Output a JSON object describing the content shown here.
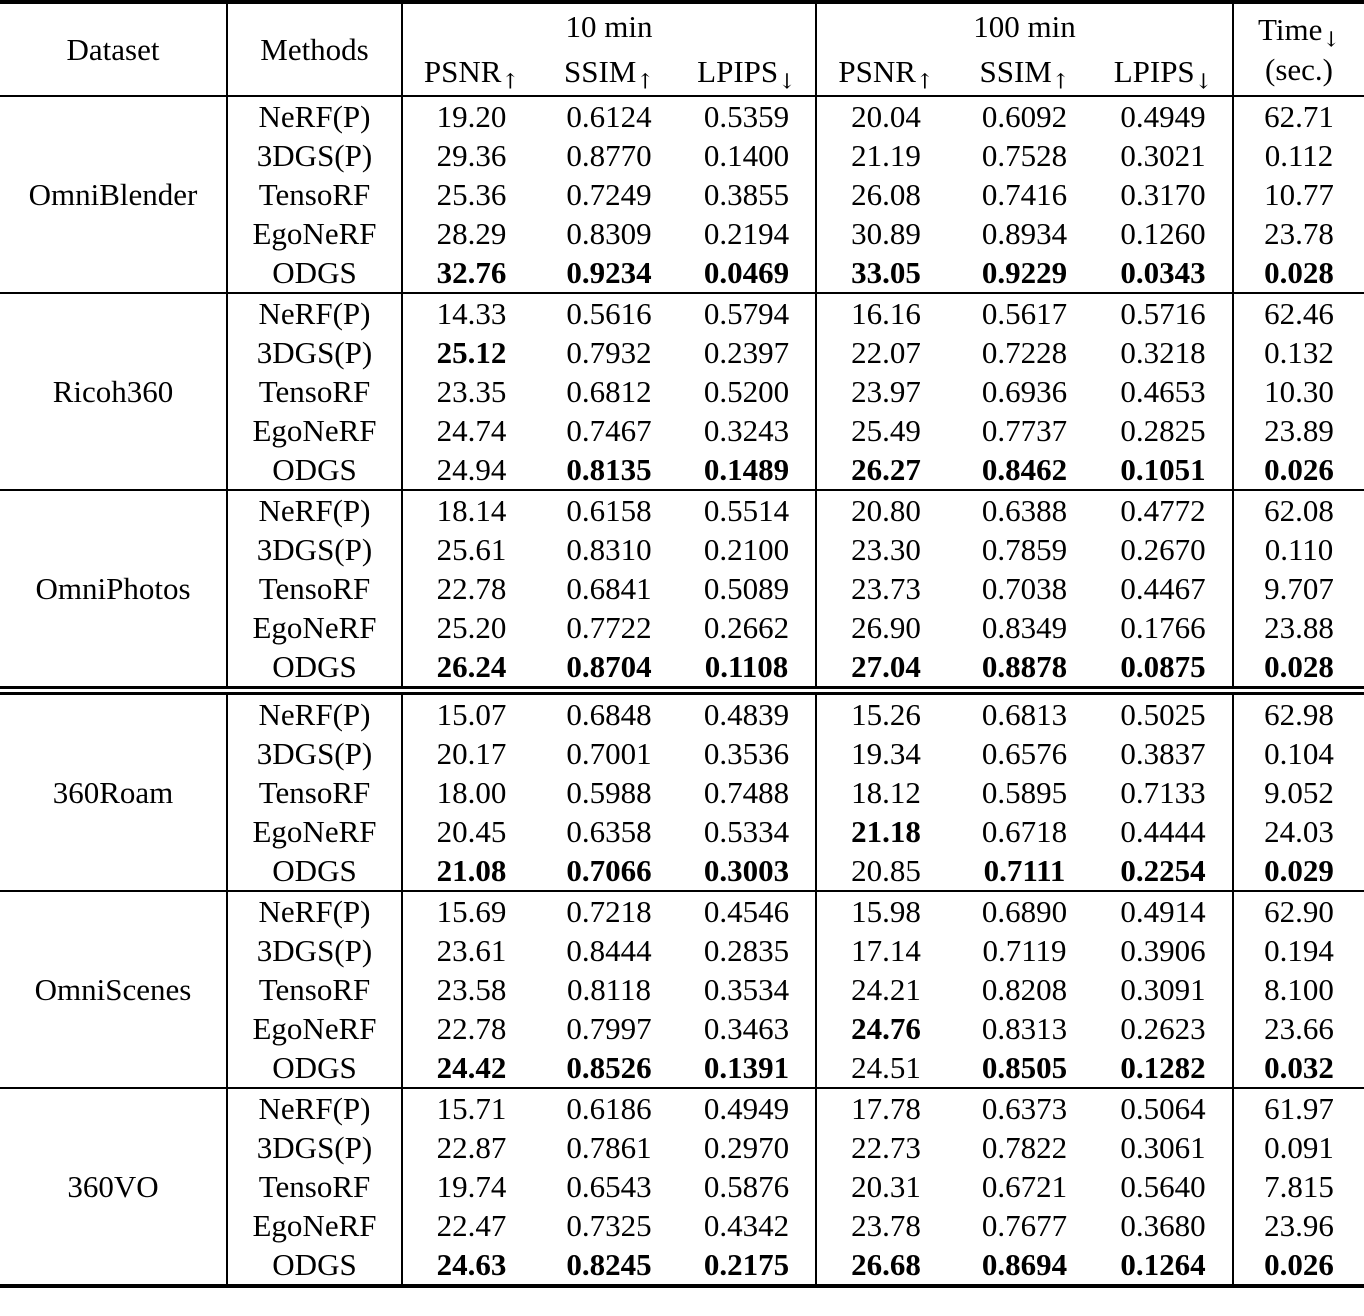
{
  "colors": {
    "text": "#000000",
    "background": "#ffffff",
    "rule": "#000000"
  },
  "table": {
    "headers": {
      "dataset": "Dataset",
      "methods": "Methods",
      "group_10min": "10 min",
      "group_100min": "100 min",
      "time_label": "Time",
      "time_arrow": "↓",
      "time_unit": "(sec.)",
      "metric_cols": [
        {
          "label": "PSNR",
          "arrow": "↑"
        },
        {
          "label": "SSIM",
          "arrow": "↑"
        },
        {
          "label": "LPIPS",
          "arrow": "↓"
        },
        {
          "label": "PSNR",
          "arrow": "↑"
        },
        {
          "label": "SSIM",
          "arrow": "↑"
        },
        {
          "label": "LPIPS",
          "arrow": "↓"
        }
      ]
    },
    "sections": [
      {
        "dataset": "OmniBlender",
        "divider": "single",
        "rows": [
          {
            "method": "NeRF(P)",
            "values": [
              "19.20",
              "0.6124",
              "0.5359",
              "20.04",
              "0.6092",
              "0.4949",
              "62.71"
            ],
            "bold": [
              false,
              false,
              false,
              false,
              false,
              false,
              false
            ]
          },
          {
            "method": "3DGS(P)",
            "values": [
              "29.36",
              "0.8770",
              "0.1400",
              "21.19",
              "0.7528",
              "0.3021",
              "0.112"
            ],
            "bold": [
              false,
              false,
              false,
              false,
              false,
              false,
              false
            ]
          },
          {
            "method": "TensoRF",
            "values": [
              "25.36",
              "0.7249",
              "0.3855",
              "26.08",
              "0.7416",
              "0.3170",
              "10.77"
            ],
            "bold": [
              false,
              false,
              false,
              false,
              false,
              false,
              false
            ]
          },
          {
            "method": "EgoNeRF",
            "values": [
              "28.29",
              "0.8309",
              "0.2194",
              "30.89",
              "0.8934",
              "0.1260",
              "23.78"
            ],
            "bold": [
              false,
              false,
              false,
              false,
              false,
              false,
              false
            ]
          },
          {
            "method": "ODGS",
            "values": [
              "32.76",
              "0.9234",
              "0.0469",
              "33.05",
              "0.9229",
              "0.0343",
              "0.028"
            ],
            "bold": [
              true,
              true,
              true,
              true,
              true,
              true,
              true
            ]
          }
        ]
      },
      {
        "dataset": "Ricoh360",
        "divider": "single",
        "rows": [
          {
            "method": "NeRF(P)",
            "values": [
              "14.33",
              "0.5616",
              "0.5794",
              "16.16",
              "0.5617",
              "0.5716",
              "62.46"
            ],
            "bold": [
              false,
              false,
              false,
              false,
              false,
              false,
              false
            ]
          },
          {
            "method": "3DGS(P)",
            "values": [
              "25.12",
              "0.7932",
              "0.2397",
              "22.07",
              "0.7228",
              "0.3218",
              "0.132"
            ],
            "bold": [
              true,
              false,
              false,
              false,
              false,
              false,
              false
            ]
          },
          {
            "method": "TensoRF",
            "values": [
              "23.35",
              "0.6812",
              "0.5200",
              "23.97",
              "0.6936",
              "0.4653",
              "10.30"
            ],
            "bold": [
              false,
              false,
              false,
              false,
              false,
              false,
              false
            ]
          },
          {
            "method": "EgoNeRF",
            "values": [
              "24.74",
              "0.7467",
              "0.3243",
              "25.49",
              "0.7737",
              "0.2825",
              "23.89"
            ],
            "bold": [
              false,
              false,
              false,
              false,
              false,
              false,
              false
            ]
          },
          {
            "method": "ODGS",
            "values": [
              "24.94",
              "0.8135",
              "0.1489",
              "26.27",
              "0.8462",
              "0.1051",
              "0.026"
            ],
            "bold": [
              false,
              true,
              true,
              true,
              true,
              true,
              true
            ]
          }
        ]
      },
      {
        "dataset": "OmniPhotos",
        "divider": "single",
        "rows": [
          {
            "method": "NeRF(P)",
            "values": [
              "18.14",
              "0.6158",
              "0.5514",
              "20.80",
              "0.6388",
              "0.4772",
              "62.08"
            ],
            "bold": [
              false,
              false,
              false,
              false,
              false,
              false,
              false
            ]
          },
          {
            "method": "3DGS(P)",
            "values": [
              "25.61",
              "0.8310",
              "0.2100",
              "23.30",
              "0.7859",
              "0.2670",
              "0.110"
            ],
            "bold": [
              false,
              false,
              false,
              false,
              false,
              false,
              false
            ]
          },
          {
            "method": "TensoRF",
            "values": [
              "22.78",
              "0.6841",
              "0.5089",
              "23.73",
              "0.7038",
              "0.4467",
              "9.707"
            ],
            "bold": [
              false,
              false,
              false,
              false,
              false,
              false,
              false
            ]
          },
          {
            "method": "EgoNeRF",
            "values": [
              "25.20",
              "0.7722",
              "0.2662",
              "26.90",
              "0.8349",
              "0.1766",
              "23.88"
            ],
            "bold": [
              false,
              false,
              false,
              false,
              false,
              false,
              false
            ]
          },
          {
            "method": "ODGS",
            "values": [
              "26.24",
              "0.8704",
              "0.1108",
              "27.04",
              "0.8878",
              "0.0875",
              "0.028"
            ],
            "bold": [
              true,
              true,
              true,
              true,
              true,
              true,
              true
            ]
          }
        ]
      },
      {
        "dataset": "360Roam",
        "divider": "double",
        "rows": [
          {
            "method": "NeRF(P)",
            "values": [
              "15.07",
              "0.6848",
              "0.4839",
              "15.26",
              "0.6813",
              "0.5025",
              "62.98"
            ],
            "bold": [
              false,
              false,
              false,
              false,
              false,
              false,
              false
            ]
          },
          {
            "method": "3DGS(P)",
            "values": [
              "20.17",
              "0.7001",
              "0.3536",
              "19.34",
              "0.6576",
              "0.3837",
              "0.104"
            ],
            "bold": [
              false,
              false,
              false,
              false,
              false,
              false,
              false
            ]
          },
          {
            "method": "TensoRF",
            "values": [
              "18.00",
              "0.5988",
              "0.7488",
              "18.12",
              "0.5895",
              "0.7133",
              "9.052"
            ],
            "bold": [
              false,
              false,
              false,
              false,
              false,
              false,
              false
            ]
          },
          {
            "method": "EgoNeRF",
            "values": [
              "20.45",
              "0.6358",
              "0.5334",
              "21.18",
              "0.6718",
              "0.4444",
              "24.03"
            ],
            "bold": [
              false,
              false,
              false,
              true,
              false,
              false,
              false
            ]
          },
          {
            "method": "ODGS",
            "values": [
              "21.08",
              "0.7066",
              "0.3003",
              "20.85",
              "0.7111",
              "0.2254",
              "0.029"
            ],
            "bold": [
              true,
              true,
              true,
              false,
              true,
              true,
              true
            ]
          }
        ]
      },
      {
        "dataset": "OmniScenes",
        "divider": "single",
        "rows": [
          {
            "method": "NeRF(P)",
            "values": [
              "15.69",
              "0.7218",
              "0.4546",
              "15.98",
              "0.6890",
              "0.4914",
              "62.90"
            ],
            "bold": [
              false,
              false,
              false,
              false,
              false,
              false,
              false
            ]
          },
          {
            "method": "3DGS(P)",
            "values": [
              "23.61",
              "0.8444",
              "0.2835",
              "17.14",
              "0.7119",
              "0.3906",
              "0.194"
            ],
            "bold": [
              false,
              false,
              false,
              false,
              false,
              false,
              false
            ]
          },
          {
            "method": "TensoRF",
            "values": [
              "23.58",
              "0.8118",
              "0.3534",
              "24.21",
              "0.8208",
              "0.3091",
              "8.100"
            ],
            "bold": [
              false,
              false,
              false,
              false,
              false,
              false,
              false
            ]
          },
          {
            "method": "EgoNeRF",
            "values": [
              "22.78",
              "0.7997",
              "0.3463",
              "24.76",
              "0.8313",
              "0.2623",
              "23.66"
            ],
            "bold": [
              false,
              false,
              false,
              true,
              false,
              false,
              false
            ]
          },
          {
            "method": "ODGS",
            "values": [
              "24.42",
              "0.8526",
              "0.1391",
              "24.51",
              "0.8505",
              "0.1282",
              "0.032"
            ],
            "bold": [
              true,
              true,
              true,
              false,
              true,
              true,
              true
            ]
          }
        ]
      },
      {
        "dataset": "360VO",
        "divider": "single",
        "rows": [
          {
            "method": "NeRF(P)",
            "values": [
              "15.71",
              "0.6186",
              "0.4949",
              "17.78",
              "0.6373",
              "0.5064",
              "61.97"
            ],
            "bold": [
              false,
              false,
              false,
              false,
              false,
              false,
              false
            ]
          },
          {
            "method": "3DGS(P)",
            "values": [
              "22.87",
              "0.7861",
              "0.2970",
              "22.73",
              "0.7822",
              "0.3061",
              "0.091"
            ],
            "bold": [
              false,
              false,
              false,
              false,
              false,
              false,
              false
            ]
          },
          {
            "method": "TensoRF",
            "values": [
              "19.74",
              "0.6543",
              "0.5876",
              "20.31",
              "0.6721",
              "0.5640",
              "7.815"
            ],
            "bold": [
              false,
              false,
              false,
              false,
              false,
              false,
              false
            ]
          },
          {
            "method": "EgoNeRF",
            "values": [
              "22.47",
              "0.7325",
              "0.4342",
              "23.78",
              "0.7677",
              "0.3680",
              "23.96"
            ],
            "bold": [
              false,
              false,
              false,
              false,
              false,
              false,
              false
            ]
          },
          {
            "method": "ODGS",
            "values": [
              "24.63",
              "0.8245",
              "0.2175",
              "26.68",
              "0.8694",
              "0.1264",
              "0.026"
            ],
            "bold": [
              true,
              true,
              true,
              true,
              true,
              true,
              true
            ]
          }
        ]
      }
    ]
  }
}
